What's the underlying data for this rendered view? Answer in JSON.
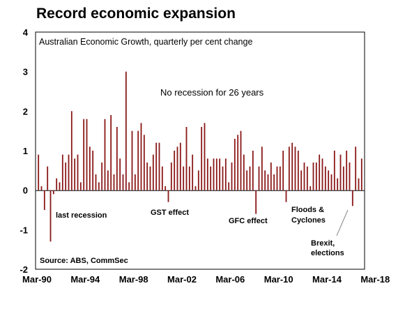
{
  "chart_data": {
    "type": "bar",
    "title": "Record economic expansion",
    "subtitle": "Australian Economic Growth, quarterly per cent change",
    "annotation_main": "No recession for 26 years",
    "source": "Source: ABS, CommSec",
    "xlabel": "",
    "ylabel": "",
    "ylim": [
      -2,
      4
    ],
    "yticks": [
      "4",
      "3",
      "2",
      "1",
      "0",
      "-1",
      "-2"
    ],
    "xticks": [
      "Mar-90",
      "Mar-94",
      "Mar-98",
      "Mar-02",
      "Mar-06",
      "Mar-10",
      "Mar-14",
      "Mar-18"
    ],
    "x_start": "Mar-90",
    "grid": false,
    "bar_color": "#8b1a1a",
    "annotations": [
      "last recession",
      "GST effect",
      "GFC effect",
      "Floods & Cyclones",
      "Brexit, elections"
    ],
    "values": [
      0.9,
      0.1,
      -0.5,
      0.6,
      -1.3,
      -0.1,
      0.3,
      0.2,
      0.9,
      0.7,
      0.9,
      2.0,
      0.8,
      0.9,
      0.2,
      1.8,
      1.8,
      1.1,
      1.0,
      0.4,
      0.2,
      0.7,
      1.8,
      0.5,
      1.9,
      0.4,
      1.6,
      0.8,
      0.4,
      3.0,
      0.2,
      1.5,
      0.4,
      1.5,
      1.7,
      1.4,
      0.7,
      0.6,
      0.9,
      1.2,
      1.2,
      0.6,
      0.1,
      -0.3,
      0.7,
      1.0,
      1.1,
      1.2,
      0.6,
      1.6,
      0.6,
      0.9,
      0.1,
      0.5,
      1.6,
      1.7,
      0.8,
      0.6,
      0.8,
      0.8,
      0.8,
      0.6,
      0.8,
      0.2,
      0.7,
      1.3,
      1.4,
      1.5,
      0.9,
      0.5,
      0.6,
      1.0,
      -0.6,
      0.6,
      1.1,
      0.5,
      0.4,
      0.7,
      0.4,
      0.6,
      0.6,
      1.0,
      -0.3,
      1.1,
      1.2,
      1.1,
      1.0,
      0.5,
      0.7,
      0.6,
      0.1,
      0.7,
      0.7,
      0.9,
      0.8,
      0.6,
      0.5,
      0.4,
      1.0,
      0.3,
      0.9,
      0.6,
      1.0,
      0.7,
      -0.4,
      1.1,
      0.3,
      0.8
    ]
  }
}
